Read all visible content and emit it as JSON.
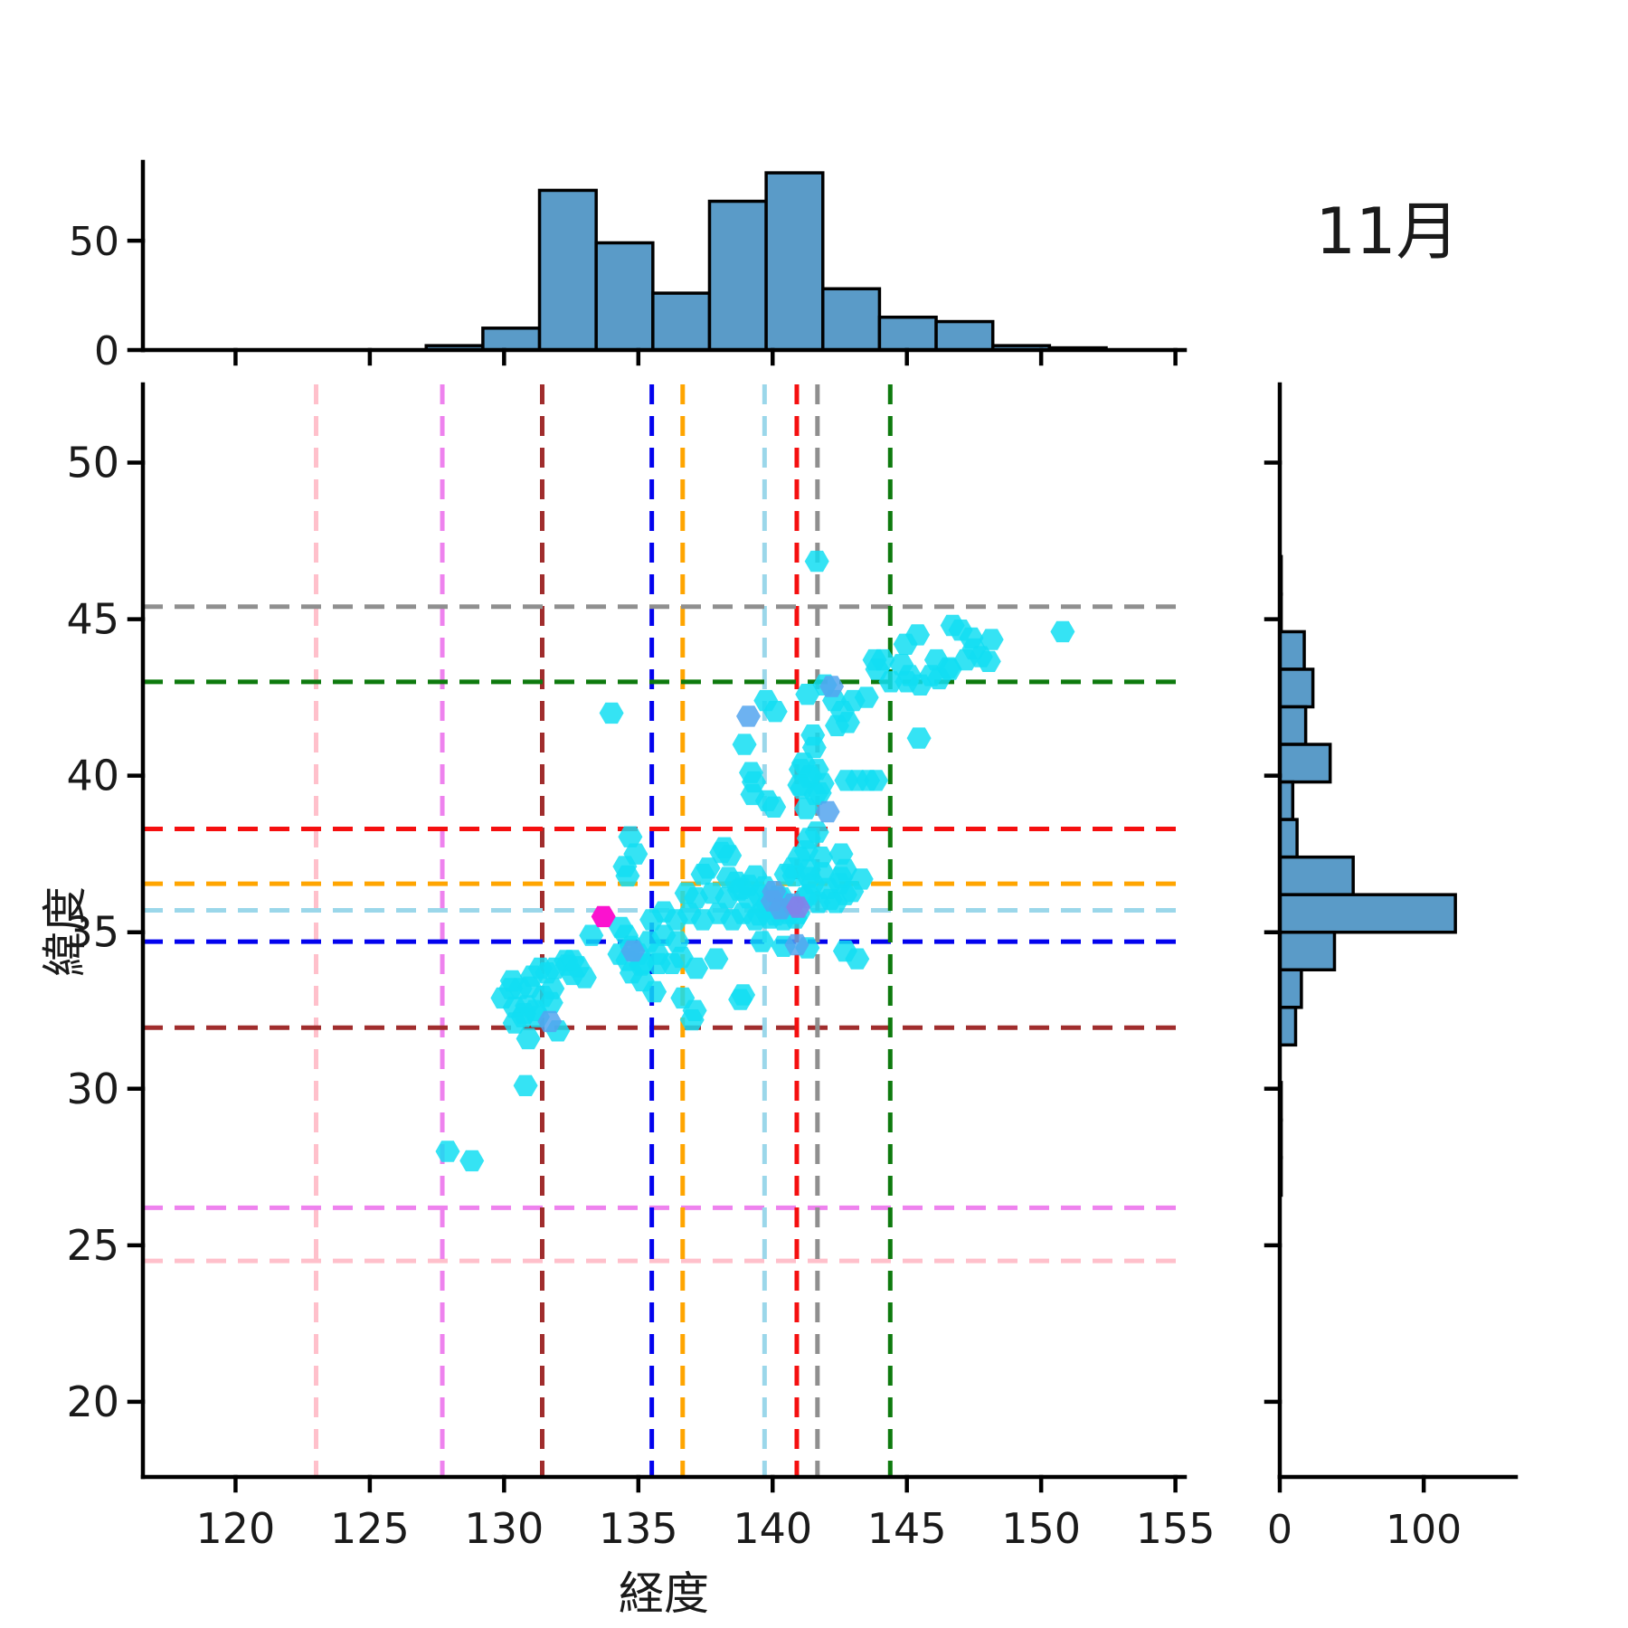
{
  "chart_data": {
    "type": "scatter",
    "subtype": "jointplot-scatter-with-marginal-histograms",
    "title": "11月",
    "xlabel": "経度",
    "ylabel": "緯度",
    "xlim": [
      116.55,
      155.35
    ],
    "ylim": [
      17.6,
      52.5
    ],
    "x_ticks": [
      120,
      125,
      130,
      135,
      140,
      145,
      150,
      155
    ],
    "y_ticks": [
      20,
      25,
      30,
      35,
      40,
      45,
      50
    ],
    "grid": false,
    "marker": "hexagon",
    "series_colors": {
      "c": "#12DEF2",
      "b": "#54A4EF",
      "p": "#8B7BE8",
      "m": "#FB12CF"
    },
    "reference_lines": [
      {
        "color": "#FFC0CB",
        "lon": 123.0,
        "lat": 24.5
      },
      {
        "color": "#EE82EE",
        "lon": 127.7,
        "lat": 26.2
      },
      {
        "color": "#A02D2D",
        "lon": 131.42,
        "lat": 31.95
      },
      {
        "color": "#0202EE",
        "lon": 135.5,
        "lat": 34.7
      },
      {
        "color": "#FFA500",
        "lon": 136.65,
        "lat": 36.55
      },
      {
        "color": "#9BD7EA",
        "lon": 139.7,
        "lat": 35.7
      },
      {
        "color": "#F50F0F",
        "lon": 140.9,
        "lat": 38.3
      },
      {
        "color": "#8F8F8F",
        "lon": 141.67,
        "lat": 45.4
      },
      {
        "color": "#0E7A0E",
        "lon": 144.38,
        "lat": 43.0
      }
    ],
    "top_histogram": {
      "bin_edges": [
        127.1,
        129.21,
        131.32,
        133.43,
        135.54,
        137.65,
        139.76,
        141.87,
        143.98,
        146.09,
        148.2,
        150.31,
        152.42
      ],
      "counts": [
        2,
        10,
        73,
        49,
        26,
        68,
        81,
        28,
        15,
        13,
        2,
        1
      ],
      "y_ticks": [
        0,
        50
      ],
      "ylim": [
        0,
        86
      ],
      "bar_color": "#5A9BC8",
      "bar_edge_color": "#000000"
    },
    "right_histogram": {
      "bin_edges": [
        47.0,
        45.8,
        44.6,
        43.4,
        42.2,
        41.0,
        39.8,
        38.6,
        37.4,
        36.2,
        35.0,
        33.8,
        32.6,
        31.4,
        30.2,
        29.0,
        27.8,
        26.6
      ],
      "counts": [
        1,
        1,
        17,
        23,
        18,
        35,
        9,
        12,
        51,
        122,
        38,
        15,
        11,
        0,
        1,
        1,
        1
      ],
      "x_ticks": [
        0,
        100
      ],
      "xlim": [
        0,
        164
      ],
      "bar_color": "#5A9BC8",
      "bar_edge_color": "#000000"
    },
    "points": [
      [
        127.9,
        28.0
      ],
      [
        128.8,
        27.7
      ],
      [
        130.8,
        30.1
      ],
      [
        129.95,
        32.9
      ],
      [
        130.25,
        33.2
      ],
      [
        130.6,
        33.2
      ],
      [
        130.95,
        33.25
      ],
      [
        130.3,
        33.45
      ],
      [
        131.05,
        33.6
      ],
      [
        131.35,
        33.85
      ],
      [
        131.6,
        33.7
      ],
      [
        131.9,
        33.85
      ],
      [
        132.35,
        33.95
      ],
      [
        132.55,
        33.65
      ],
      [
        131.8,
        33.2
      ],
      [
        131.45,
        32.95
      ],
      [
        131.75,
        32.75
      ],
      [
        130.85,
        32.65
      ],
      [
        131.15,
        32.5
      ],
      [
        130.7,
        32.3
      ],
      [
        130.4,
        32.6
      ],
      [
        130.75,
        32.4
      ],
      [
        130.4,
        32.1
      ],
      [
        131.25,
        32.3
      ],
      [
        131.7,
        32.15,
        "b"
      ],
      [
        132.0,
        31.85
      ],
      [
        130.9,
        31.6
      ],
      [
        132.3,
        34.1
      ],
      [
        132.55,
        34.1
      ],
      [
        132.75,
        33.9
      ],
      [
        133.0,
        33.55
      ],
      [
        133.25,
        34.9
      ],
      [
        133.7,
        35.5,
        "m"
      ],
      [
        134.35,
        35.15
      ],
      [
        134.55,
        34.9
      ],
      [
        134.75,
        34.55
      ],
      [
        134.3,
        34.3
      ],
      [
        134.6,
        34.1
      ],
      [
        135.0,
        34.3
      ],
      [
        134.8,
        34.4,
        "b"
      ],
      [
        135.1,
        33.95
      ],
      [
        134.75,
        33.7
      ],
      [
        135.15,
        33.45
      ],
      [
        135.6,
        33.1
      ],
      [
        135.75,
        34.0
      ],
      [
        135.4,
        34.7
      ],
      [
        135.5,
        35.4
      ],
      [
        135.95,
        34.9
      ],
      [
        136.45,
        34.7
      ],
      [
        135.7,
        34.3
      ],
      [
        135.15,
        34.0
      ],
      [
        136.25,
        34.0
      ],
      [
        137.15,
        33.85
      ],
      [
        137.9,
        34.15
      ],
      [
        136.6,
        34.2
      ],
      [
        135.95,
        35.65
      ],
      [
        136.4,
        35.4
      ],
      [
        136.9,
        35.6
      ],
      [
        136.65,
        32.9
      ],
      [
        137.1,
        32.5
      ],
      [
        137.0,
        32.2
      ],
      [
        138.8,
        32.85
      ],
      [
        138.9,
        33.0
      ],
      [
        136.8,
        36.25
      ],
      [
        137.15,
        36.1
      ],
      [
        137.4,
        35.4
      ],
      [
        137.75,
        36.25
      ],
      [
        138.0,
        35.6
      ],
      [
        138.3,
        36.1
      ],
      [
        138.5,
        35.4
      ],
      [
        138.75,
        36.35
      ],
      [
        138.9,
        35.6
      ],
      [
        139.1,
        36.1
      ],
      [
        139.35,
        35.4
      ],
      [
        139.5,
        36.2
      ],
      [
        137.4,
        36.85
      ],
      [
        137.6,
        37.05
      ],
      [
        138.1,
        37.55
      ],
      [
        138.2,
        37.7
      ],
      [
        138.4,
        37.45
      ],
      [
        138.35,
        36.75
      ],
      [
        138.65,
        36.6
      ],
      [
        138.85,
        36.4
      ],
      [
        139.1,
        36.5
      ],
      [
        134.7,
        38.05
      ],
      [
        134.9,
        37.5
      ],
      [
        134.5,
        37.1
      ],
      [
        134.6,
        36.8
      ],
      [
        139.35,
        36.8
      ],
      [
        139.7,
        36.45
      ],
      [
        139.5,
        35.55
      ],
      [
        140.05,
        36.3,
        "b"
      ],
      [
        140.35,
        36.1
      ],
      [
        139.8,
        35.9
      ],
      [
        140.1,
        35.55
      ],
      [
        140.5,
        35.9
      ],
      [
        139.9,
        35.45
      ],
      [
        140.2,
        36.15
      ],
      [
        140.6,
        35.6
      ],
      [
        139.7,
        35.75
      ],
      [
        140.85,
        35.45
      ],
      [
        140.0,
        36.0,
        "b"
      ],
      [
        140.3,
        35.75,
        "b"
      ],
      [
        140.75,
        35.9,
        "b"
      ],
      [
        140.95,
        35.8,
        "p"
      ],
      [
        140.4,
        35.4
      ],
      [
        140.95,
        35.6
      ],
      [
        139.6,
        34.7
      ],
      [
        140.4,
        34.55
      ],
      [
        140.9,
        34.6,
        "b"
      ],
      [
        141.3,
        34.5
      ],
      [
        142.7,
        34.4
      ],
      [
        143.15,
        34.15
      ],
      [
        141.2,
        36.1
      ],
      [
        142.15,
        36.05
      ],
      [
        140.8,
        36.8
      ],
      [
        141.35,
        36.75
      ],
      [
        142.5,
        36.55
      ],
      [
        142.95,
        36.3
      ],
      [
        143.3,
        36.7
      ],
      [
        141.5,
        36.55
      ],
      [
        142.05,
        36.4
      ],
      [
        141.35,
        36.2
      ],
      [
        141.7,
        35.95
      ],
      [
        142.35,
        35.95
      ],
      [
        142.7,
        36.2
      ],
      [
        141.35,
        37.0
      ],
      [
        141.0,
        37.4
      ],
      [
        141.8,
        37.4
      ],
      [
        142.55,
        37.5
      ],
      [
        142.7,
        37.0
      ],
      [
        142.55,
        36.75
      ],
      [
        141.85,
        36.9
      ],
      [
        140.75,
        37.05
      ],
      [
        140.5,
        36.85
      ],
      [
        141.25,
        37.6
      ],
      [
        141.35,
        38.0
      ],
      [
        141.65,
        38.2
      ],
      [
        140.05,
        39.0
      ],
      [
        141.25,
        38.95
      ],
      [
        142.05,
        38.85,
        "b"
      ],
      [
        139.2,
        40.1
      ],
      [
        139.3,
        39.8
      ],
      [
        139.25,
        39.4
      ],
      [
        139.8,
        39.2
      ],
      [
        141.05,
        40.2
      ],
      [
        141.35,
        39.95
      ],
      [
        141.65,
        40.2
      ],
      [
        141.85,
        39.75
      ],
      [
        141.1,
        39.6
      ],
      [
        141.6,
        39.4
      ],
      [
        142.75,
        39.85
      ],
      [
        143.15,
        39.85
      ],
      [
        143.55,
        39.85
      ],
      [
        143.85,
        39.85
      ],
      [
        145.45,
        41.2
      ],
      [
        139.75,
        42.4
      ],
      [
        140.1,
        42.05
      ],
      [
        138.95,
        41.0
      ],
      [
        139.1,
        41.9,
        "b"
      ],
      [
        141.3,
        42.6
      ],
      [
        141.95,
        42.9
      ],
      [
        142.3,
        42.4
      ],
      [
        142.6,
        42.05
      ],
      [
        143.0,
        42.4
      ],
      [
        143.5,
        42.5
      ],
      [
        142.4,
        41.6
      ],
      [
        142.8,
        41.7
      ],
      [
        141.5,
        41.3
      ],
      [
        141.55,
        40.9
      ],
      [
        141.15,
        40.4
      ],
      [
        141.4,
        40.0
      ],
      [
        141.0,
        39.7
      ],
      [
        141.75,
        39.45
      ],
      [
        142.2,
        42.85,
        "b"
      ],
      [
        143.8,
        43.7
      ],
      [
        143.9,
        43.4
      ],
      [
        144.1,
        43.7
      ],
      [
        144.4,
        43.0
      ],
      [
        144.8,
        43.55
      ],
      [
        144.95,
        44.2
      ],
      [
        145.4,
        44.5
      ],
      [
        145.1,
        43.2
      ],
      [
        145.9,
        43.2
      ],
      [
        146.1,
        43.7
      ],
      [
        145.0,
        43.0
      ],
      [
        145.5,
        42.9
      ],
      [
        146.2,
        43.1
      ],
      [
        146.6,
        43.4
      ],
      [
        146.7,
        44.8
      ],
      [
        147.0,
        44.65
      ],
      [
        147.4,
        44.4
      ],
      [
        147.5,
        44.05
      ],
      [
        147.75,
        43.8
      ],
      [
        147.2,
        43.7
      ],
      [
        148.05,
        43.65
      ],
      [
        148.15,
        44.35
      ],
      [
        146.55,
        43.45
      ],
      [
        150.8,
        44.6
      ],
      [
        134.0,
        42.0
      ],
      [
        141.65,
        46.85
      ]
    ]
  }
}
